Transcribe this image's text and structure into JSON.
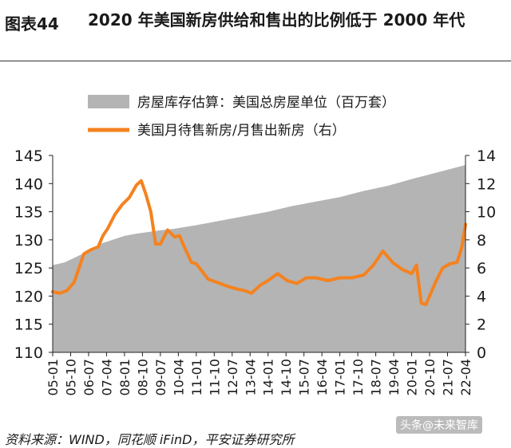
{
  "header": {
    "figure_label": "图表44",
    "title": "2020 年美国新房供给和售出的比例低于 2000 年代"
  },
  "footer": {
    "source": "资料来源：WIND，同花顺 iFinD，平安证券研究所",
    "watermark": "头条@未来智库"
  },
  "colors": {
    "area": "#b4b4b4",
    "line": "#f5821f",
    "axis": "#222222"
  },
  "chart_data": {
    "type": "area+line",
    "title": "",
    "legend_placement": "top-center",
    "series": [
      {
        "name": "房屋库存估算：美国总房屋单位（百万套）",
        "type": "area",
        "axis": "left",
        "x": [
          2005.0,
          2005.5,
          2006.0,
          2006.5,
          2007.0,
          2007.5,
          2008.0,
          2008.5,
          2009.0,
          2009.5,
          2010.0,
          2011.0,
          2012.0,
          2013.0,
          2014.0,
          2015.0,
          2016.0,
          2017.0,
          2018.0,
          2019.0,
          2020.0,
          2021.0,
          2022.25
        ],
        "values": [
          125.5,
          126.0,
          127.0,
          128.0,
          129.3,
          130.0,
          130.7,
          131.1,
          131.4,
          131.7,
          131.9,
          132.6,
          133.4,
          134.2,
          135.0,
          136.0,
          136.8,
          137.6,
          138.7,
          139.6,
          140.8,
          141.9,
          143.3
        ]
      },
      {
        "name": "美国月待售新房/月售出新房（右）",
        "type": "line",
        "axis": "right",
        "x": [
          2005.0,
          2005.3,
          2005.6,
          2005.9,
          2006.1,
          2006.3,
          2006.6,
          2006.9,
          2007.1,
          2007.3,
          2007.6,
          2007.9,
          2008.2,
          2008.5,
          2008.7,
          2008.9,
          2009.1,
          2009.3,
          2009.5,
          2009.8,
          2010.1,
          2010.3,
          2010.5,
          2010.8,
          2011.0,
          2011.5,
          2012.0,
          2012.3,
          2012.7,
          2013.0,
          2013.3,
          2013.7,
          2014.0,
          2014.4,
          2014.8,
          2015.2,
          2015.6,
          2016.0,
          2016.5,
          2017.0,
          2017.5,
          2018.0,
          2018.4,
          2018.8,
          2019.2,
          2019.6,
          2020.0,
          2020.2,
          2020.4,
          2020.6,
          2020.8,
          2021.0,
          2021.3,
          2021.6,
          2021.9,
          2022.1,
          2022.25
        ],
        "values": [
          4.3,
          4.2,
          4.4,
          5.0,
          6.0,
          7.0,
          7.3,
          7.5,
          8.3,
          8.8,
          9.8,
          10.5,
          11.0,
          11.9,
          12.2,
          11.2,
          10.0,
          7.7,
          7.7,
          8.7,
          8.2,
          8.3,
          7.5,
          6.4,
          6.3,
          5.2,
          4.9,
          4.7,
          4.5,
          4.4,
          4.2,
          4.8,
          5.1,
          5.6,
          5.1,
          4.9,
          5.3,
          5.3,
          5.1,
          5.3,
          5.3,
          5.5,
          6.2,
          7.2,
          6.4,
          5.9,
          5.6,
          6.2,
          3.5,
          3.4,
          4.2,
          5.0,
          6.0,
          6.3,
          6.4,
          7.5,
          9.1
        ]
      }
    ],
    "left_axis": {
      "ylim": [
        110,
        145
      ],
      "ticks": [
        110,
        115,
        120,
        125,
        130,
        135,
        140,
        145
      ]
    },
    "right_axis": {
      "ylim": [
        0,
        14
      ],
      "ticks": [
        0,
        2,
        4,
        6,
        8,
        10,
        12,
        14
      ]
    },
    "x_axis": {
      "range": [
        2005.0,
        2022.25
      ],
      "tick_labels": [
        "05-01",
        "05-10",
        "06-07",
        "07-04",
        "08-01",
        "08-10",
        "09-07",
        "10-04",
        "11-01",
        "11-10",
        "12-07",
        "13-04",
        "14-01",
        "14-10",
        "15-07",
        "16-04",
        "17-01",
        "17-10",
        "18-07",
        "19-04",
        "20-01",
        "20-10",
        "21-07",
        "22-04"
      ],
      "tick_values": [
        2005.0,
        2005.75,
        2006.5,
        2007.25,
        2008.0,
        2008.75,
        2009.5,
        2010.25,
        2011.0,
        2011.75,
        2012.5,
        2013.25,
        2014.0,
        2014.75,
        2015.5,
        2016.25,
        2017.0,
        2017.75,
        2018.5,
        2019.25,
        2020.0,
        2020.75,
        2021.5,
        2022.25
      ]
    }
  }
}
